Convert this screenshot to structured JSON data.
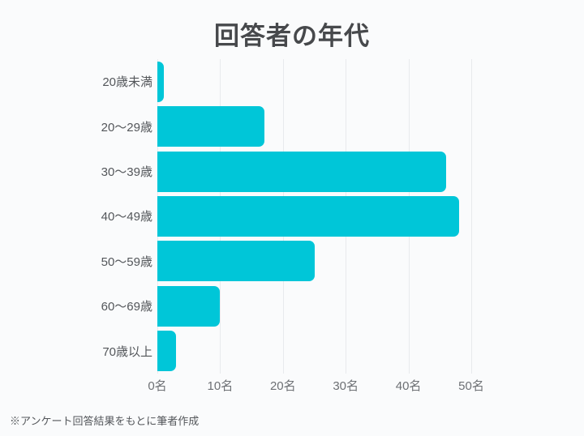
{
  "colors": {
    "background": "#fafbfc",
    "bar": "#00c6d8",
    "gridline": "#e8eaed",
    "title_text": "#47494c",
    "category_text": "#53565a",
    "tick_text": "#6d7074",
    "note_text": "#54575b"
  },
  "chart_data": {
    "type": "bar",
    "orientation": "horizontal",
    "title": "回答者の年代",
    "categories": [
      "20歳未満",
      "20〜29歳",
      "30〜39歳",
      "40〜49歳",
      "50〜59歳",
      "60〜69歳",
      "70歳以上"
    ],
    "values": [
      1,
      17,
      46,
      48,
      25,
      10,
      3
    ],
    "unit": "名",
    "xlim": [
      0,
      50
    ],
    "xticks": [
      {
        "value": 0,
        "label": "0名"
      },
      {
        "value": 10,
        "label": "10名"
      },
      {
        "value": 20,
        "label": "20名"
      },
      {
        "value": 30,
        "label": "30名"
      },
      {
        "value": 40,
        "label": "40名"
      },
      {
        "value": 50,
        "label": "50名"
      }
    ],
    "grid": true,
    "legend": false,
    "source_note": "※アンケート回答結果をもとに筆者作成"
  }
}
